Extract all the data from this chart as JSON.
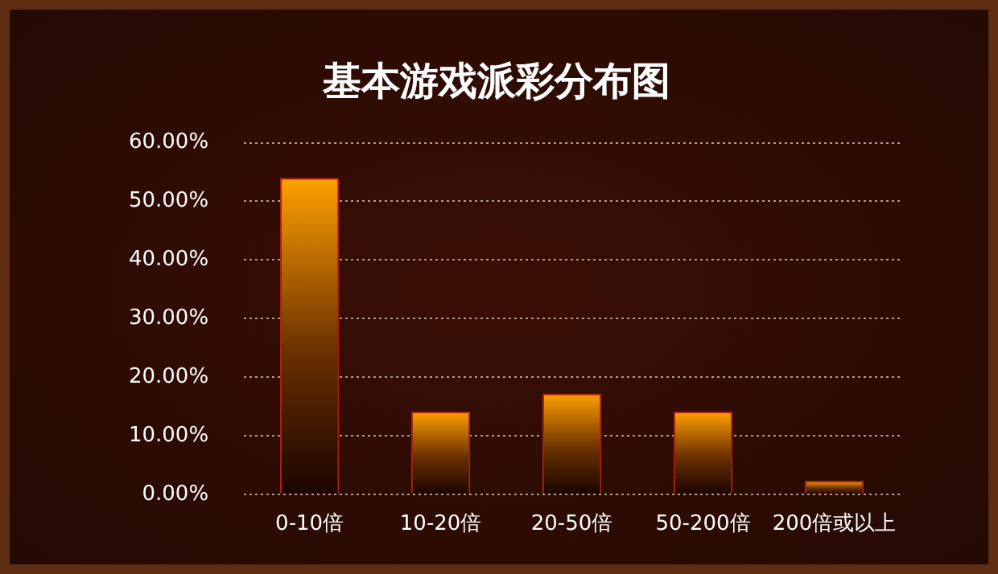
{
  "chart_data": {
    "type": "bar",
    "title": "基本游戏派彩分布图",
    "categories": [
      "0-10倍",
      "10-20倍",
      "20-50倍",
      "50-200倍",
      "200倍或以上"
    ],
    "values": [
      54.0,
      14.1,
      17.2,
      14.1,
      2.3
    ],
    "color": "#ffa000",
    "ylim": [
      0,
      60
    ],
    "yticks": [
      {
        "value": 0,
        "label": "0.00%"
      },
      {
        "value": 10,
        "label": "10.00%"
      },
      {
        "value": 20,
        "label": "20.00%"
      },
      {
        "value": 30,
        "label": "30.00%"
      },
      {
        "value": 40,
        "label": "40.00%"
      },
      {
        "value": 50,
        "label": "50.00%"
      },
      {
        "value": 60,
        "label": "60.00%"
      }
    ],
    "grid": "y",
    "legend": false
  }
}
